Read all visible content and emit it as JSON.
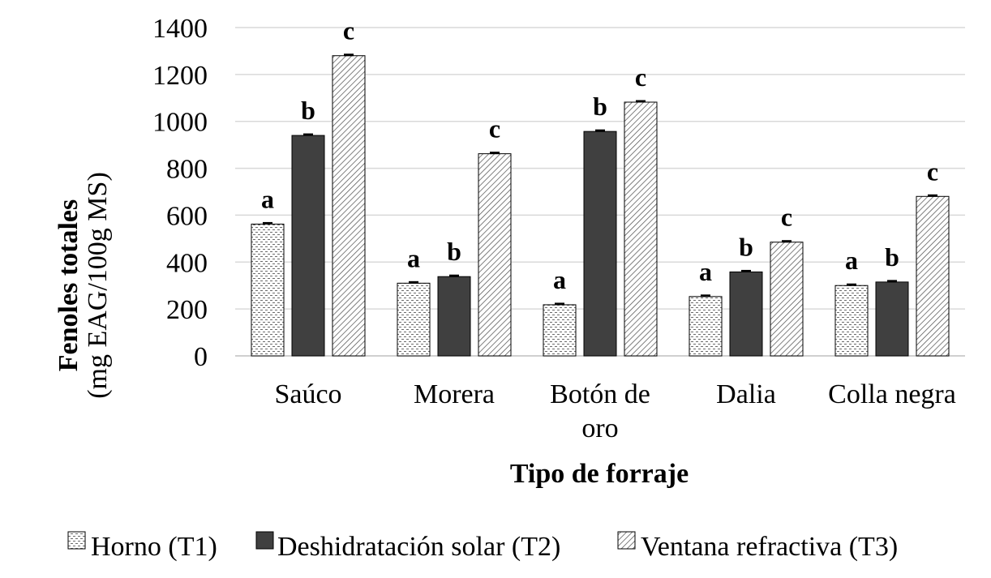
{
  "chart_data": {
    "type": "bar",
    "categories": [
      [
        "Saúco"
      ],
      [
        "Morera"
      ],
      [
        "Botón de",
        "oro"
      ],
      [
        "Dalia"
      ],
      [
        "Colla negra"
      ]
    ],
    "series": [
      {
        "name": "Horno (T1)",
        "values": [
          562,
          310,
          218,
          253,
          300
        ],
        "labels": [
          "a",
          "a",
          "a",
          "a",
          "a"
        ],
        "pattern": "dots",
        "color": "#ffffff"
      },
      {
        "name": "Deshidratación solar (T2)",
        "values": [
          940,
          338,
          957,
          358,
          315
        ],
        "labels": [
          "b",
          "b",
          "b",
          "b",
          "b"
        ],
        "pattern": "solid",
        "color": "#404040"
      },
      {
        "name": "Ventana refractiva (T3)",
        "values": [
          1280,
          862,
          1082,
          485,
          680
        ],
        "labels": [
          "c",
          "c",
          "c",
          "c",
          "c"
        ],
        "pattern": "diagonal",
        "color": "#ffffff"
      }
    ],
    "ylim": [
      0,
      1400
    ],
    "yticks": [
      0,
      200,
      400,
      600,
      800,
      1000,
      1200,
      1400
    ],
    "ylabel_line1": "Fenoles totales",
    "ylabel_line2": "(mg EAG/100g MS)",
    "xlabel": "Tipo de forraje",
    "grid": true,
    "legend_position": "bottom"
  }
}
